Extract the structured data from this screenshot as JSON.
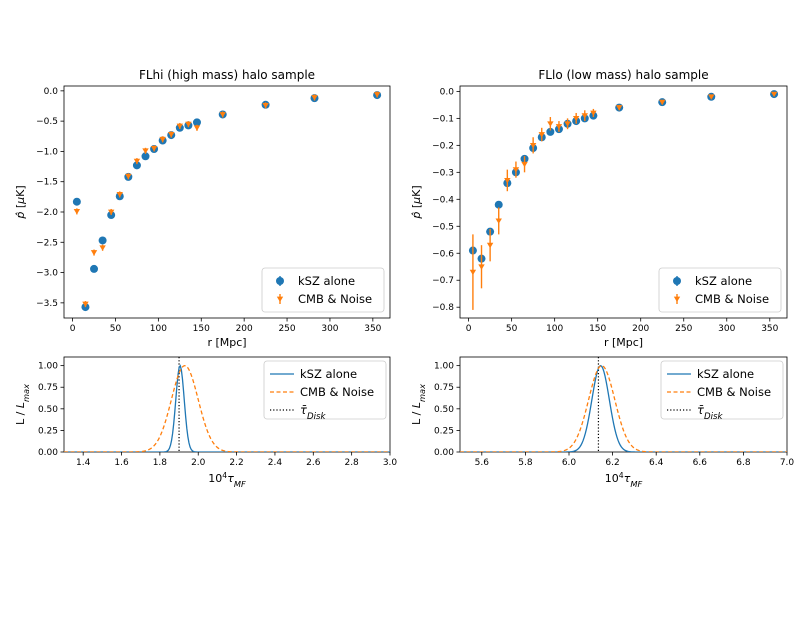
{
  "colors": {
    "kSZ": "#1f77b4",
    "CMB": "#ff7f0e",
    "ref": "#000000"
  },
  "chart_data": [
    {
      "type": "scatter",
      "title": "FLhi (high mass) halo sample",
      "xlabel": "r [Mpc]",
      "ylabel": "p̂ [μK]",
      "xlim": [
        -10,
        370
      ],
      "ylim": [
        -3.75,
        0.08
      ],
      "xticks": [
        0,
        50,
        100,
        150,
        200,
        250,
        300,
        350
      ],
      "yticks": [
        0.0,
        -0.5,
        -1.0,
        -1.5,
        -2.0,
        -2.5,
        -3.0,
        -3.5
      ],
      "ytick_labels": [
        "0.0",
        "−0.5",
        "−1.0",
        "−1.5",
        "−2.0",
        "−2.5",
        "−3.0",
        "−3.5"
      ],
      "legend_placement": "lower-right",
      "series": [
        {
          "name": "kSZ alone",
          "marker": "circle",
          "x": [
            5,
            15,
            25,
            35,
            45,
            55,
            65,
            75,
            85,
            95,
            105,
            115,
            125,
            135,
            145,
            175,
            225,
            282,
            355
          ],
          "y": [
            -1.83,
            -3.57,
            -2.94,
            -2.47,
            -2.05,
            -1.74,
            -1.42,
            -1.23,
            -1.08,
            -0.96,
            -0.82,
            -0.73,
            -0.61,
            -0.57,
            -0.52,
            -0.39,
            -0.23,
            -0.12,
            -0.07
          ],
          "yerr": [
            0.02,
            0.02,
            0.02,
            0.02,
            0.02,
            0.02,
            0.02,
            0.02,
            0.02,
            0.02,
            0.02,
            0.02,
            0.02,
            0.02,
            0.02,
            0.02,
            0.02,
            0.02,
            0.02
          ]
        },
        {
          "name": "CMB & Noise",
          "marker": "triangle-down",
          "x": [
            5,
            15,
            25,
            35,
            45,
            55,
            65,
            75,
            85,
            95,
            105,
            115,
            125,
            135,
            145,
            175,
            225,
            282,
            355
          ],
          "y": [
            -1.99,
            -3.52,
            -2.67,
            -2.59,
            -2.0,
            -1.71,
            -1.41,
            -1.16,
            -0.99,
            -0.95,
            -0.8,
            -0.72,
            -0.58,
            -0.55,
            -0.61,
            -0.39,
            -0.24,
            -0.11,
            -0.06
          ],
          "yerr": [
            0.05,
            0.05,
            0.05,
            0.05,
            0.05,
            0.05,
            0.05,
            0.05,
            0.05,
            0.05,
            0.05,
            0.05,
            0.05,
            0.05,
            0.05,
            0.05,
            0.05,
            0.05,
            0.05
          ]
        }
      ]
    },
    {
      "type": "scatter",
      "title": "FLlo (low mass) halo sample",
      "xlabel": "r [Mpc]",
      "ylabel": "p̂ [μK]",
      "xlim": [
        -10,
        370
      ],
      "ylim": [
        -0.84,
        0.02
      ],
      "xticks": [
        0,
        50,
        100,
        150,
        200,
        250,
        300,
        350
      ],
      "yticks": [
        0.0,
        -0.1,
        -0.2,
        -0.3,
        -0.4,
        -0.5,
        -0.6,
        -0.7,
        -0.8
      ],
      "ytick_labels": [
        "0.0",
        "−0.1",
        "−0.2",
        "−0.3",
        "−0.4",
        "−0.5",
        "−0.6",
        "−0.7",
        "−0.8"
      ],
      "legend_placement": "lower-right",
      "series": [
        {
          "name": "kSZ alone",
          "marker": "circle",
          "x": [
            5,
            15,
            25,
            35,
            45,
            55,
            65,
            75,
            85,
            95,
            105,
            115,
            125,
            135,
            145,
            175,
            225,
            282,
            355
          ],
          "y": [
            -0.59,
            -0.62,
            -0.52,
            -0.42,
            -0.34,
            -0.3,
            -0.25,
            -0.21,
            -0.17,
            -0.15,
            -0.14,
            -0.12,
            -0.11,
            -0.1,
            -0.09,
            -0.06,
            -0.04,
            -0.02,
            -0.01
          ],
          "yerr": [
            0.005,
            0.005,
            0.005,
            0.005,
            0.005,
            0.005,
            0.005,
            0.005,
            0.005,
            0.005,
            0.005,
            0.005,
            0.005,
            0.005,
            0.005,
            0.005,
            0.005,
            0.005,
            0.005
          ]
        },
        {
          "name": "CMB & Noise",
          "marker": "triangle-down",
          "x": [
            5,
            15,
            25,
            35,
            45,
            55,
            65,
            75,
            85,
            95,
            105,
            115,
            125,
            135,
            145,
            175,
            225,
            282,
            355
          ],
          "y": [
            -0.67,
            -0.65,
            -0.57,
            -0.48,
            -0.33,
            -0.29,
            -0.27,
            -0.2,
            -0.16,
            -0.12,
            -0.13,
            -0.12,
            -0.1,
            -0.09,
            -0.08,
            -0.06,
            -0.04,
            -0.02,
            -0.01
          ],
          "yerr": [
            0.14,
            0.08,
            0.06,
            0.05,
            0.04,
            0.03,
            0.03,
            0.03,
            0.025,
            0.025,
            0.02,
            0.02,
            0.02,
            0.02,
            0.015,
            0.01,
            0.008,
            0.006,
            0.004
          ]
        }
      ]
    },
    {
      "type": "line",
      "xlabel": "10⁴τ_MF",
      "ylabel": "L / L_max",
      "xlim": [
        1.3,
        3.0
      ],
      "ylim": [
        0.0,
        1.1
      ],
      "xticks": [
        1.4,
        1.6,
        1.8,
        2.0,
        2.2,
        2.4,
        2.6,
        2.8,
        3.0
      ],
      "xtick_labels": [
        "1.4",
        "1.6",
        "1.8",
        "2.0",
        "2.2",
        "2.4",
        "2.6",
        "2.8",
        "3.0"
      ],
      "yticks": [
        0.0,
        0.25,
        0.5,
        0.75,
        1.0
      ],
      "ytick_labels": [
        "0.00",
        "0.25",
        "0.50",
        "0.75",
        "1.00"
      ],
      "legend_placement": "upper-right",
      "series": [
        {
          "name": "kSZ alone",
          "style": "solid",
          "mean": 1.905,
          "sigma": 0.022
        },
        {
          "name": "CMB & Noise",
          "style": "dashed",
          "mean": 1.93,
          "sigma": 0.07
        }
      ],
      "reference": {
        "name": "τ̄_Disk",
        "x": 1.9,
        "style": "dotted"
      }
    },
    {
      "type": "line",
      "xlabel": "10⁴τ_MF",
      "ylabel": "L / L_max",
      "xlim": [
        5.5,
        7.0
      ],
      "ylim": [
        0.0,
        1.1
      ],
      "xticks": [
        5.6,
        5.8,
        6.0,
        6.2,
        6.4,
        6.6,
        6.8,
        7.0
      ],
      "xtick_labels": [
        "5.6",
        "5.8",
        "6.0",
        "6.2",
        "6.4",
        "6.6",
        "6.8",
        "7.0"
      ],
      "yticks": [
        0.0,
        0.25,
        0.5,
        0.75,
        1.0
      ],
      "ytick_labels": [
        "0.00",
        "0.25",
        "0.50",
        "0.75",
        "1.00"
      ],
      "legend_placement": "upper-right",
      "series": [
        {
          "name": "kSZ alone",
          "style": "solid",
          "mean": 6.145,
          "sigma": 0.04
        },
        {
          "name": "CMB & Noise",
          "style": "dashed",
          "mean": 6.15,
          "sigma": 0.06
        }
      ],
      "reference": {
        "name": "τ̄_Disk",
        "x": 6.135,
        "style": "dotted"
      }
    }
  ]
}
